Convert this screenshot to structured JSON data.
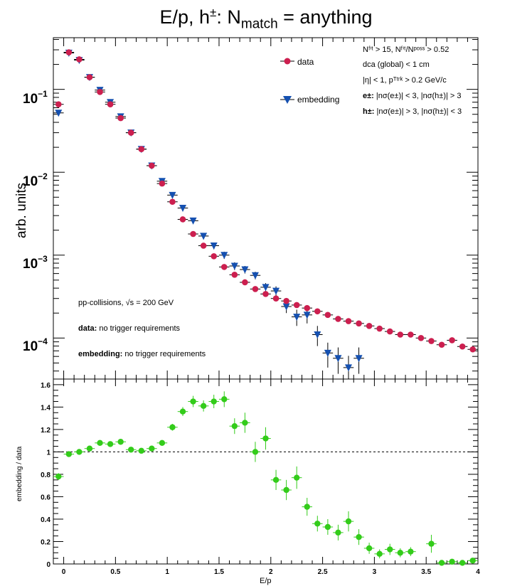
{
  "title": {
    "base": "E/p, h",
    "sup": "±",
    "mid": ": N",
    "sub": "match",
    "rest": " = anything"
  },
  "top_panel": {
    "ylabel": "arb. units",
    "legend": [
      {
        "label": "data",
        "color": "#cc1f4f",
        "marker": "circle"
      },
      {
        "label": "embedding",
        "color": "#1550b0",
        "marker": "triangle-down"
      }
    ],
    "cuts": {
      "line1": "Nᶠⁱᵗ > 15, Nᶠⁱᵗ/Nᵖᵒˢˢ > 0.52",
      "line2": "dca (global) < 1 cm",
      "line3": "|η| < 1, pᵀᵗʳᵏ > 0.2 GeV/c",
      "line4_bold": "e±:",
      "line4": " |nσ(e±)| < 3, |nσ(h±)| > 3",
      "line5_bold": "h±:",
      "line5": " |nσ(e±)| > 3, |nσ(h±)| < 3"
    },
    "notes": {
      "collisions": "pp-collisions, √s = 200 GeV",
      "data_bold": "data:",
      "data_text": " no trigger requirements",
      "emb_bold": "embedding:",
      "emb_text": " no trigger requirements"
    },
    "ytick_labels": {
      "e1": "10",
      "e1_exp": "−1",
      "e2": "10",
      "e2_exp": "−2",
      "e3": "10",
      "e3_exp": "−3",
      "e4": "10",
      "e4_exp": "−4"
    }
  },
  "bottom_panel": {
    "xlabel": "E/p",
    "ylabel": "embedding / data",
    "xtick_labels": [
      "0",
      "0.5",
      "1",
      "1.5",
      "2",
      "2.5",
      "3",
      "3.5",
      "4"
    ],
    "ytick_labels": [
      "0",
      "0.2",
      "0.4",
      "0.6",
      "0.8",
      "1",
      "1.2",
      "1.4",
      "1.6"
    ]
  },
  "chart_data": [
    {
      "type": "scatter",
      "panel": "top",
      "yscale": "log",
      "xlim": [
        -0.1,
        4.0
      ],
      "ylim": [
        3.2e-05,
        0.42
      ],
      "ylabel": "arb. units",
      "x": [
        -0.05,
        0.05,
        0.15,
        0.25,
        0.35,
        0.45,
        0.55,
        0.65,
        0.75,
        0.85,
        0.95,
        1.05,
        1.15,
        1.25,
        1.35,
        1.45,
        1.55,
        1.65,
        1.75,
        1.85,
        1.95,
        2.05,
        2.15,
        2.25,
        2.35,
        2.45,
        2.55,
        2.65,
        2.75,
        2.85,
        2.95,
        3.05,
        3.15,
        3.25,
        3.35,
        3.45,
        3.55,
        3.65,
        3.75,
        3.85,
        3.95
      ],
      "series": [
        {
          "name": "data",
          "color": "#cc1f4f",
          "values": [
            0.066,
            0.28,
            0.23,
            0.14,
            0.093,
            0.066,
            0.045,
            0.03,
            0.019,
            0.012,
            0.0073,
            0.0044,
            0.0027,
            0.0018,
            0.0013,
            0.00097,
            0.00072,
            0.00058,
            0.00047,
            0.00039,
            0.00034,
            0.0003,
            0.00028,
            0.00025,
            0.00023,
            0.00021,
            0.00019,
            0.00017,
            0.00016,
            0.00015,
            0.00014,
            0.00013,
            0.00012,
            0.00011,
            0.00011,
            0.0001,
            9.2e-05,
            8.3e-05,
            9.4e-05,
            7.9e-05,
            7.3e-05
          ]
        },
        {
          "name": "embedding",
          "color": "#1550b0",
          "values": [
            0.052,
            0.275,
            0.225,
            0.14,
            0.098,
            0.07,
            0.047,
            0.03,
            0.019,
            0.012,
            0.0078,
            0.0053,
            0.0037,
            0.0026,
            0.0017,
            0.0013,
            0.001,
            0.00074,
            0.00067,
            0.00057,
            0.00041,
            0.00037,
            0.00024,
            0.00018,
            0.00019,
            0.00011,
            6.6e-05,
            5.7e-05,
            4.4e-05,
            5.7e-05,
            null,
            null,
            null,
            null,
            null,
            null,
            null,
            null,
            null,
            null,
            null
          ],
          "errors": [
            0.003,
            0.008,
            0.007,
            0.005,
            0.004,
            0.003,
            0.002,
            0.0015,
            0.001,
            0.0007,
            0.0005,
            0.0004,
            0.0003,
            0.0002,
            0.00015,
            0.00012,
            0.0001,
            8e-05,
            7e-05,
            6e-05,
            5e-05,
            5e-05,
            4e-05,
            4e-05,
            4e-05,
            3e-05,
            2.2e-05,
            2e-05,
            1.7e-05,
            2e-05,
            null,
            null,
            null,
            null,
            null,
            null,
            null,
            null,
            null,
            null,
            null
          ]
        }
      ]
    },
    {
      "type": "scatter",
      "panel": "bottom",
      "xlim": [
        -0.1,
        4.0
      ],
      "ylim": [
        0,
        1.65
      ],
      "xlabel": "E/p",
      "ylabel": "embedding / data",
      "reference_line": 1.0,
      "x": [
        -0.05,
        0.05,
        0.15,
        0.25,
        0.35,
        0.45,
        0.55,
        0.65,
        0.75,
        0.85,
        0.95,
        1.05,
        1.15,
        1.25,
        1.35,
        1.45,
        1.55,
        1.65,
        1.75,
        1.85,
        1.95,
        2.05,
        2.15,
        2.25,
        2.35,
        2.45,
        2.55,
        2.65,
        2.75,
        2.85,
        2.95,
        3.05,
        3.15,
        3.25,
        3.35,
        3.45,
        3.55,
        3.65,
        3.75,
        3.85,
        3.95
      ],
      "series": [
        {
          "name": "embedding / data",
          "color": "#33cc1a",
          "values": [
            0.78,
            0.98,
            1.0,
            1.03,
            1.08,
            1.07,
            1.09,
            1.02,
            1.01,
            1.03,
            1.08,
            1.22,
            1.36,
            1.45,
            1.41,
            1.45,
            1.47,
            1.23,
            1.26,
            1.0,
            1.12,
            0.75,
            0.66,
            0.77,
            0.51,
            0.36,
            0.33,
            0.28,
            0.38,
            0.24,
            0.14,
            0.09,
            0.13,
            0.1,
            0.11,
            null,
            0.18,
            0.01,
            0.02,
            0.01,
            0.03
          ],
          "errors": [
            0.03,
            0.01,
            0.01,
            0.01,
            0.01,
            0.01,
            0.01,
            0.01,
            0.015,
            0.02,
            0.02,
            0.03,
            0.04,
            0.05,
            0.05,
            0.06,
            0.07,
            0.07,
            0.09,
            0.09,
            0.1,
            0.09,
            0.09,
            0.1,
            0.08,
            0.07,
            0.07,
            0.07,
            0.09,
            0.07,
            0.05,
            0.04,
            0.05,
            0.04,
            0.04,
            null,
            0.08,
            0.01,
            0.02,
            0.02,
            0.02
          ]
        }
      ]
    }
  ]
}
